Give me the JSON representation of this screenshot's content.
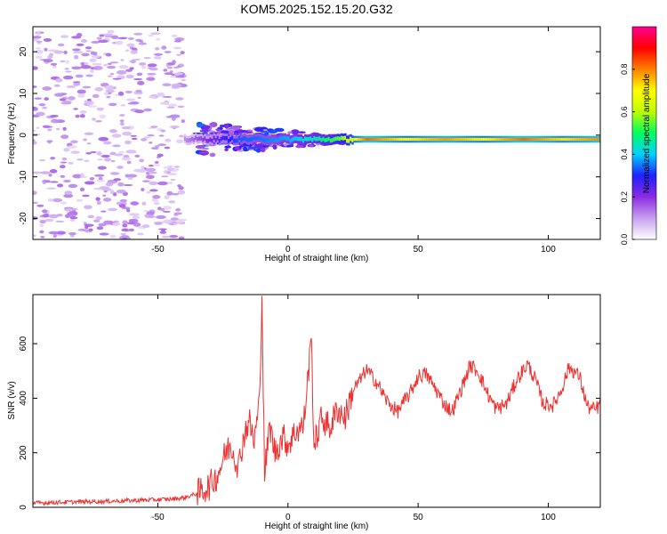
{
  "title": "KOM5.2025.152.15.20.G32",
  "colorbar_gradient": [
    "#ffffff",
    "#c8a0f0",
    "#8a2be2",
    "#2020ff",
    "#00d0ff",
    "#00ff60",
    "#c0ff00",
    "#ffff00",
    "#ff8000",
    "#ff0000",
    "#ff0090"
  ],
  "chart_data": [
    {
      "type": "heatmap",
      "title": "KOM5.2025.152.15.20.G32",
      "xlabel": "Height of straight line (km)",
      "ylabel": "Frequency (Hz)",
      "xlim": [
        -98,
        120
      ],
      "ylim": [
        -25,
        26
      ],
      "xticks": [
        -50,
        0,
        50,
        100
      ],
      "yticks": [
        -20,
        -10,
        0,
        10,
        20
      ],
      "colorbar": {
        "label": "Normalized spectral amplitude",
        "range": [
          0,
          1
        ],
        "ticks": [
          "0.0",
          "0.2",
          "0.4",
          "0.6",
          "0.8"
        ]
      },
      "signal_band_hz": -1,
      "noise_region_x": [
        -98,
        -40
      ],
      "noise_y_range": [
        -25,
        25
      ],
      "transition_region_x": [
        -35,
        25
      ],
      "strong_signal_x": [
        25,
        120
      ],
      "amplitude_by_height": [
        {
          "x": -98,
          "amp": 0.1
        },
        {
          "x": -40,
          "amp": 0.12
        },
        {
          "x": -30,
          "amp": 0.22
        },
        {
          "x": -20,
          "amp": 0.33
        },
        {
          "x": -10,
          "amp": 0.35
        },
        {
          "x": 0,
          "amp": 0.38
        },
        {
          "x": 10,
          "amp": 0.45
        },
        {
          "x": 20,
          "amp": 0.55
        },
        {
          "x": 30,
          "amp": 0.82
        },
        {
          "x": 45,
          "amp": 0.7
        },
        {
          "x": 60,
          "amp": 0.78
        },
        {
          "x": 75,
          "amp": 0.7
        },
        {
          "x": 90,
          "amp": 0.82
        },
        {
          "x": 105,
          "amp": 0.72
        },
        {
          "x": 120,
          "amp": 0.8
        }
      ]
    },
    {
      "type": "line",
      "xlabel": "Height of straight line (km)",
      "ylabel": "SNR (v/v)",
      "xlim": [
        -98,
        120
      ],
      "ylim": [
        0,
        780
      ],
      "xticks": [
        -50,
        0,
        50,
        100
      ],
      "yticks": [
        0,
        200,
        400,
        600
      ],
      "color": "#ee3030",
      "series": [
        {
          "values": [
            {
              "x": -98,
              "y": 15
            },
            {
              "x": -90,
              "y": 18
            },
            {
              "x": -80,
              "y": 20
            },
            {
              "x": -70,
              "y": 22
            },
            {
              "x": -60,
              "y": 25
            },
            {
              "x": -50,
              "y": 28
            },
            {
              "x": -45,
              "y": 30
            },
            {
              "x": -40,
              "y": 35
            },
            {
              "x": -35,
              "y": 50
            },
            {
              "x": -30,
              "y": 80
            },
            {
              "x": -27,
              "y": 120
            },
            {
              "x": -24,
              "y": 200
            },
            {
              "x": -22,
              "y": 230
            },
            {
              "x": -19,
              "y": 150
            },
            {
              "x": -17,
              "y": 260
            },
            {
              "x": -15,
              "y": 320
            },
            {
              "x": -13,
              "y": 240
            },
            {
              "x": -11,
              "y": 380
            },
            {
              "x": -10,
              "y": 775
            },
            {
              "x": -9,
              "y": 120
            },
            {
              "x": -7,
              "y": 300
            },
            {
              "x": -5,
              "y": 200
            },
            {
              "x": -2,
              "y": 260
            },
            {
              "x": 0,
              "y": 230
            },
            {
              "x": 3,
              "y": 280
            },
            {
              "x": 6,
              "y": 300
            },
            {
              "x": 9,
              "y": 620
            },
            {
              "x": 10,
              "y": 220
            },
            {
              "x": 13,
              "y": 330
            },
            {
              "x": 16,
              "y": 290
            },
            {
              "x": 19,
              "y": 360
            },
            {
              "x": 22,
              "y": 330
            },
            {
              "x": 25,
              "y": 430
            },
            {
              "x": 28,
              "y": 470
            },
            {
              "x": 30,
              "y": 505
            },
            {
              "x": 34,
              "y": 460
            },
            {
              "x": 38,
              "y": 390
            },
            {
              "x": 42,
              "y": 350
            },
            {
              "x": 47,
              "y": 420
            },
            {
              "x": 50,
              "y": 480
            },
            {
              "x": 53,
              "y": 490
            },
            {
              "x": 57,
              "y": 430
            },
            {
              "x": 60,
              "y": 380
            },
            {
              "x": 63,
              "y": 350
            },
            {
              "x": 66,
              "y": 420
            },
            {
              "x": 70,
              "y": 520
            },
            {
              "x": 73,
              "y": 500
            },
            {
              "x": 77,
              "y": 410
            },
            {
              "x": 80,
              "y": 360
            },
            {
              "x": 84,
              "y": 380
            },
            {
              "x": 88,
              "y": 470
            },
            {
              "x": 92,
              "y": 525
            },
            {
              "x": 95,
              "y": 470
            },
            {
              "x": 98,
              "y": 380
            },
            {
              "x": 102,
              "y": 375
            },
            {
              "x": 105,
              "y": 430
            },
            {
              "x": 108,
              "y": 515
            },
            {
              "x": 112,
              "y": 480
            },
            {
              "x": 115,
              "y": 370
            },
            {
              "x": 118,
              "y": 355
            },
            {
              "x": 120,
              "y": 380
            }
          ]
        }
      ]
    }
  ]
}
